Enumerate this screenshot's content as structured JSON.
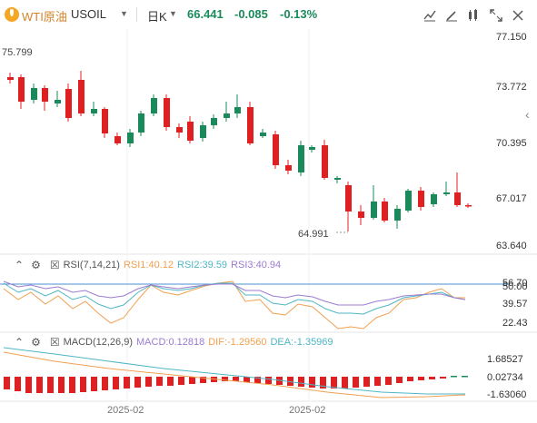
{
  "header": {
    "title": "WTI原油",
    "symbol": "USOIL",
    "period": "日K",
    "price": "66.441",
    "change": "-0.085",
    "change_pct": "-0.13%"
  },
  "toolbar": {
    "icons": [
      "compare-icon",
      "draw-icon",
      "indicator-icon",
      "fullscreen-icon",
      "close-icon"
    ]
  },
  "main_chart": {
    "y_labels": [
      "77.150",
      "73.772",
      "70.395",
      "67.017",
      "63.640"
    ],
    "high_label": "75.799",
    "low_label": "64.991",
    "colors": {
      "up": "#1a8a5a",
      "down": "#e02020"
    }
  },
  "rsi": {
    "name": "RSI(7,14,21)",
    "rsi1": "RSI1:40.12",
    "rsi2": "RSI2:39.59",
    "rsi3": "RSI3:40.94",
    "y_labels": [
      "56.70",
      "50.00",
      "39.57",
      "22.43"
    ]
  },
  "macd": {
    "name": "MACD(12,26,9)",
    "macd": "MACD:0.12818",
    "dif": "DIF:-1.29560",
    "dea": "DEA:-1.35969",
    "y_labels": [
      "1.68527",
      "0.02734",
      "-1.63060"
    ]
  },
  "x_axis": {
    "labels": [
      "2025-02",
      "2025-02"
    ]
  }
}
